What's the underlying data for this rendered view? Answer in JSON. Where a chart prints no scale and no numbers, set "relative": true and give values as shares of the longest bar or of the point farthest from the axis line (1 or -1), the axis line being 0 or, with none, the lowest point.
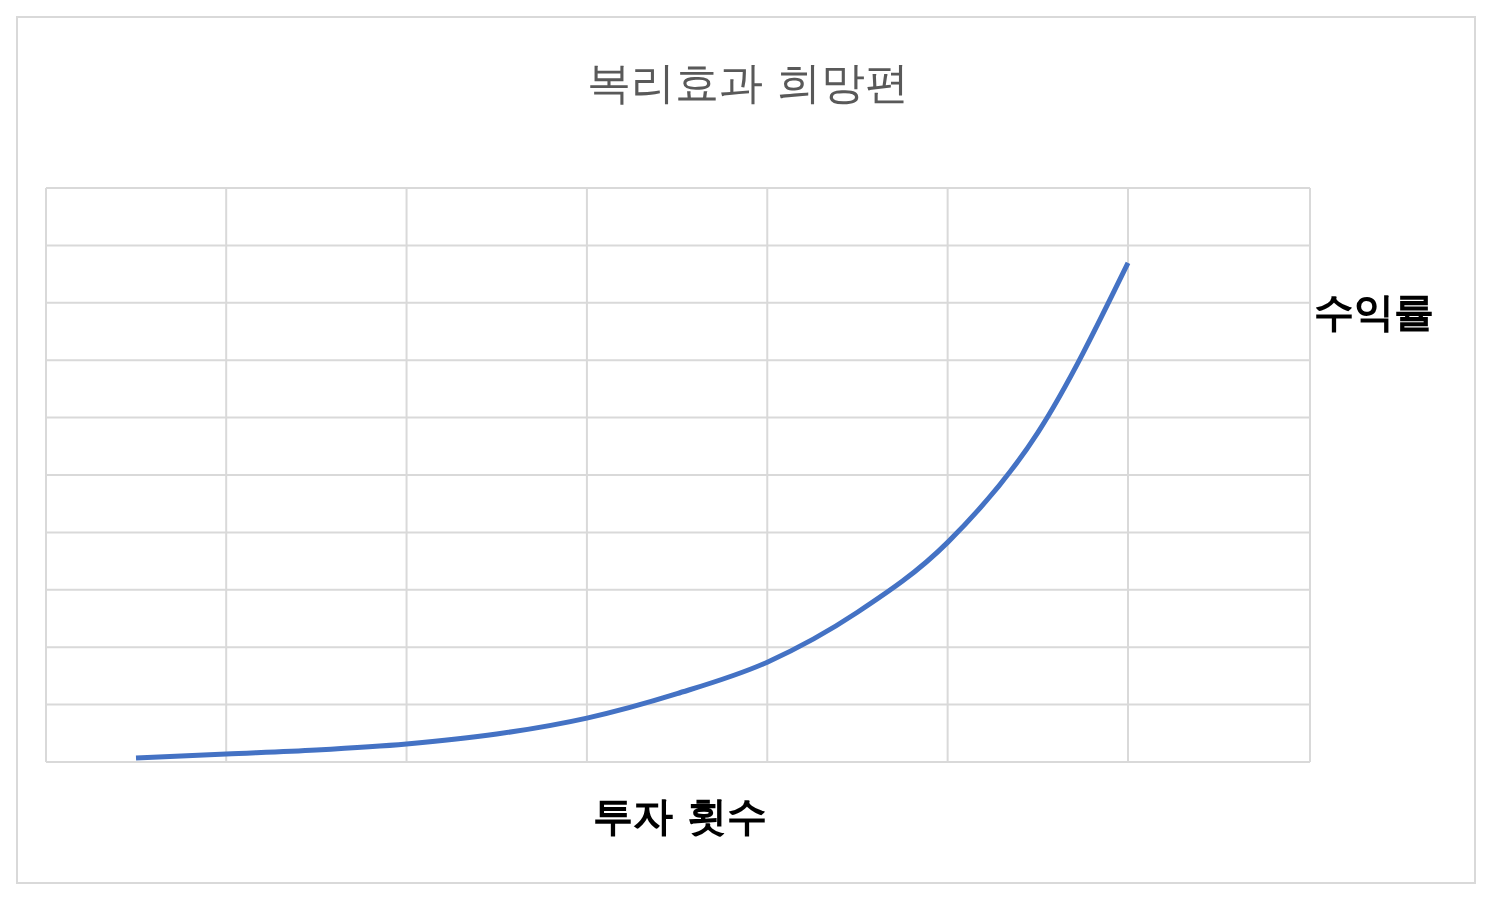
{
  "chart_data": {
    "type": "line",
    "title": "복리효과 희망편",
    "xlabel": "투자 횟수",
    "ylabel": "수익률",
    "relative": true,
    "grid": true,
    "marker": "none",
    "categories": [
      null,
      null,
      null,
      null,
      null,
      null,
      null,
      null,
      null,
      null,
      null,
      null
    ],
    "series": [
      {
        "color": "#4472c4",
        "values": [
          0.008,
          0.016,
          0.024,
          0.036,
          0.056,
          0.088,
          0.137,
          0.2,
          0.3,
          0.44,
          0.66,
          1.0
        ]
      }
    ]
  }
}
